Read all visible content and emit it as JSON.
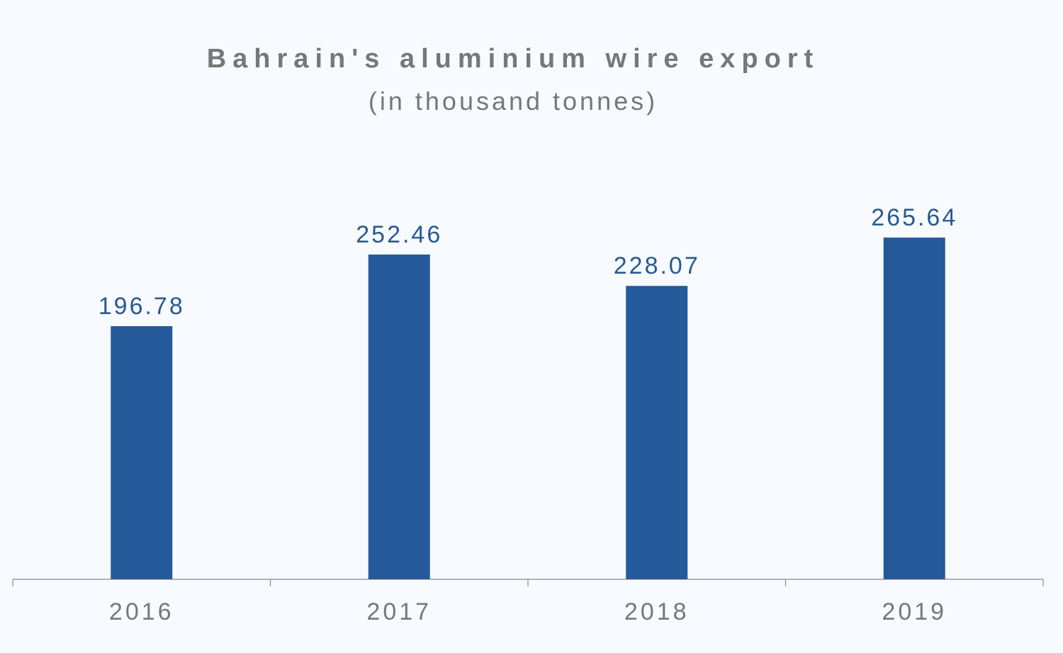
{
  "chart_data": {
    "type": "bar",
    "title": "Bahrain's aluminium wire export",
    "subtitle": "(in thousand tonnes)",
    "categories": [
      "2016",
      "2017",
      "2018",
      "2019"
    ],
    "values": [
      196.78,
      252.46,
      228.07,
      265.64
    ],
    "color": "#245a9a"
  }
}
